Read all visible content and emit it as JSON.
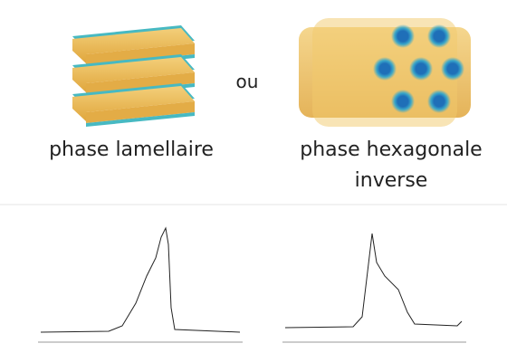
{
  "labels": {
    "left": "phase lamellaire",
    "or": "ou",
    "right_line1": "phase hexagonale",
    "right_line2": "inverse"
  }
}
